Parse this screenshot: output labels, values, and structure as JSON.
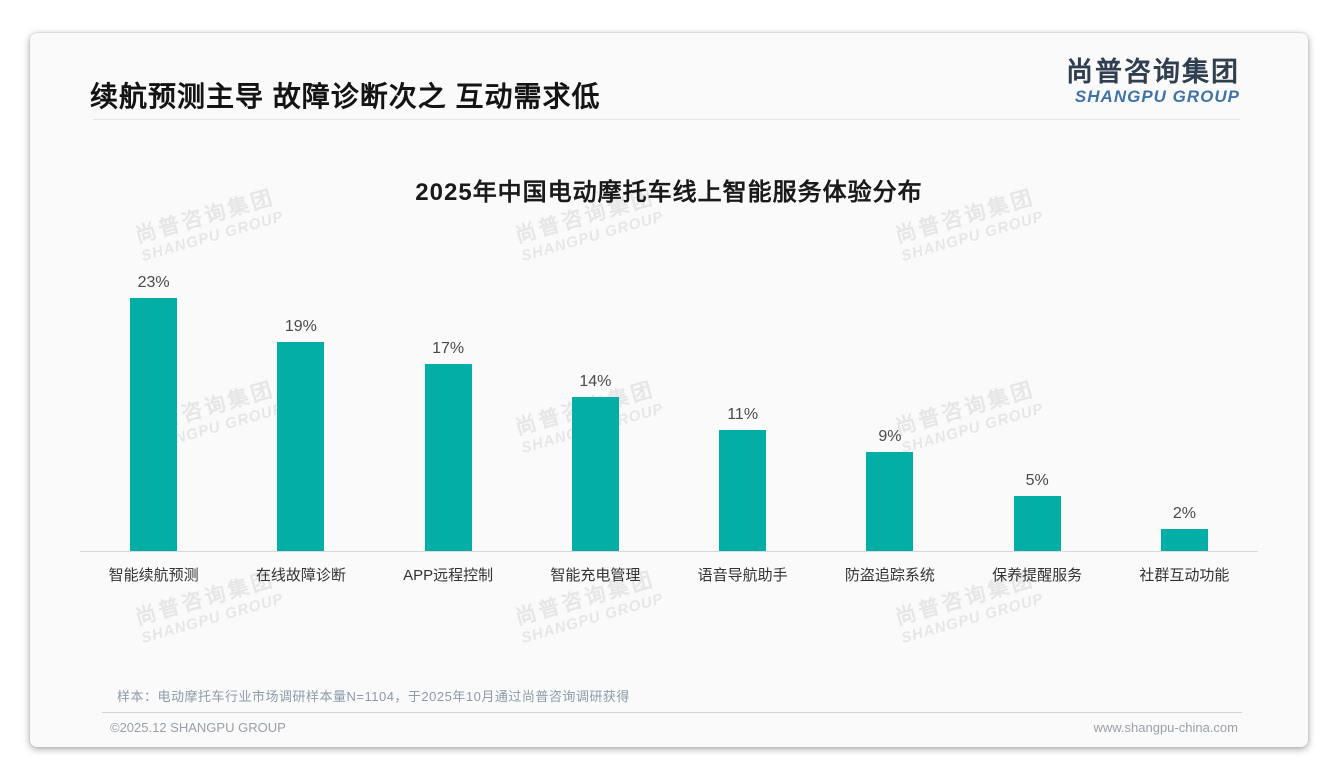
{
  "header": {
    "title": "续航预测主导 故障诊断次之 互动需求低"
  },
  "logo": {
    "zh": "尚普咨询集团",
    "en": "SHANGPU GROUP"
  },
  "watermark": {
    "line1": "尚普咨询集团",
    "line2": "SHANGPU GROUP"
  },
  "chart_data": {
    "type": "bar",
    "title": "2025年中国电动摩托车线上智能服务体验分布",
    "categories": [
      "智能续航预测",
      "在线故障诊断",
      "APP远程控制",
      "智能充电管理",
      "语音导航助手",
      "防盗追踪系统",
      "保养提醒服务",
      "社群互动功能"
    ],
    "values": [
      23,
      19,
      17,
      14,
      11,
      9,
      5,
      2
    ],
    "unit": "%",
    "bar_color": "#03aea7",
    "ylim": [
      0,
      25
    ],
    "grid": false,
    "legend": "none"
  },
  "footnote": {
    "text": "样本：电动摩托车行业市场调研样本量N=1104，于2025年10月通过尚普咨询调研获得"
  },
  "footer": {
    "left": "©2025.12 SHANGPU GROUP",
    "right": "www.shangpu-china.com"
  }
}
